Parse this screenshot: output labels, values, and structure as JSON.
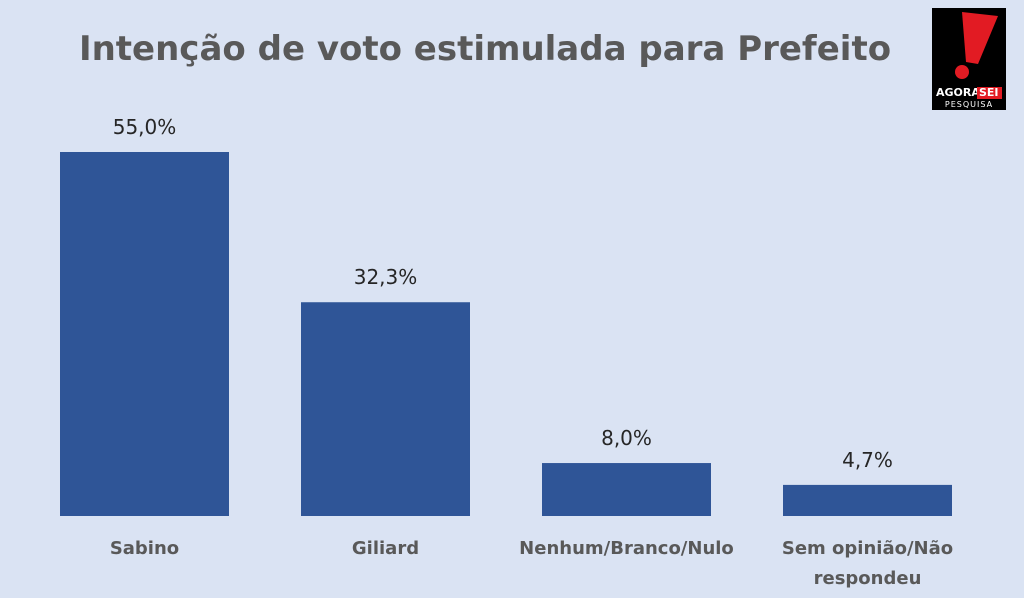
{
  "chart_data": {
    "type": "bar",
    "title": "Intenção de voto estimulada para Prefeito",
    "categories": [
      "Sabino",
      "Giliard",
      "Nenhum/Branco/Nulo",
      "Sem opinião/Não respondeu"
    ],
    "values": [
      55.0,
      32.3,
      8.0,
      4.7
    ],
    "value_labels": [
      "55,0%",
      "32,3%",
      "8,0%",
      "4,7%"
    ],
    "color": "#2f5597",
    "logo": {
      "name": "AGORA",
      "highlight": "SEI",
      "subtitle": "PESQUISA"
    }
  }
}
